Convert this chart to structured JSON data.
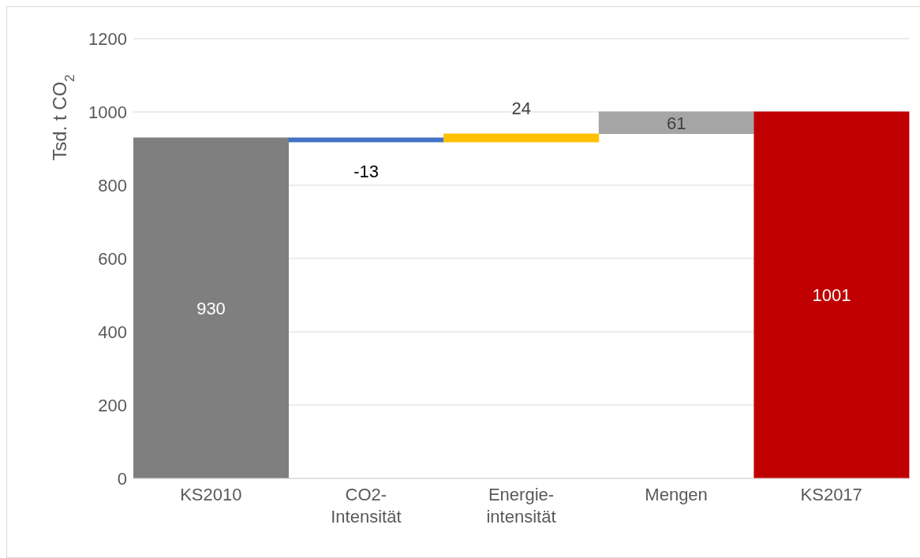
{
  "chart_data": {
    "type": "bar",
    "ylabel": "Tsd. t CO$_{2}$",
    "categories": [
      "KS2010",
      "CO2-Intensität",
      "Energie-intensität",
      "Mengen",
      "KS2017"
    ],
    "values": [
      930,
      -13,
      24,
      61,
      1001
    ],
    "base": [
      0,
      930,
      917,
      940,
      0
    ],
    "colors": [
      "#7f7f7f",
      "#4472c4",
      "#ffc000",
      "#a5a5a5",
      "#c00000"
    ],
    "ylim": [
      0,
      1200
    ],
    "yticks": [
      0,
      200,
      400,
      600,
      800,
      1000,
      1200
    ],
    "grid": "y",
    "data_labels": true
  }
}
